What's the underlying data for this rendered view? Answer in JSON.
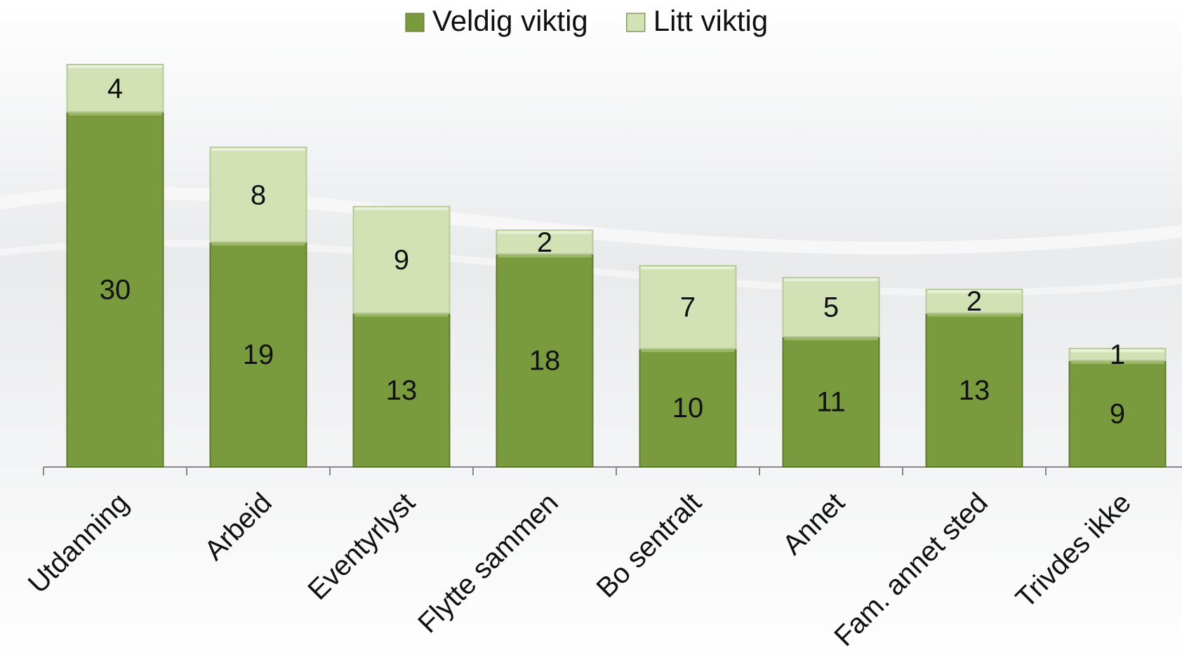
{
  "chart_data": {
    "type": "bar",
    "stacked": true,
    "categories": [
      "Utdanning",
      "Arbeid",
      "Eventyrlyst",
      "Flytte sammen",
      "Bo sentralt",
      "Annet",
      "Fam. annet sted",
      "Trivdes ikke"
    ],
    "series": [
      {
        "name": "Veldig viktig",
        "color": "#7a9a3e",
        "values": [
          30,
          19,
          13,
          18,
          10,
          11,
          13,
          9
        ]
      },
      {
        "name": "Litt viktig",
        "color": "#d3e2b5",
        "values": [
          4,
          8,
          9,
          2,
          7,
          5,
          2,
          1
        ]
      }
    ],
    "legend": "top"
  }
}
